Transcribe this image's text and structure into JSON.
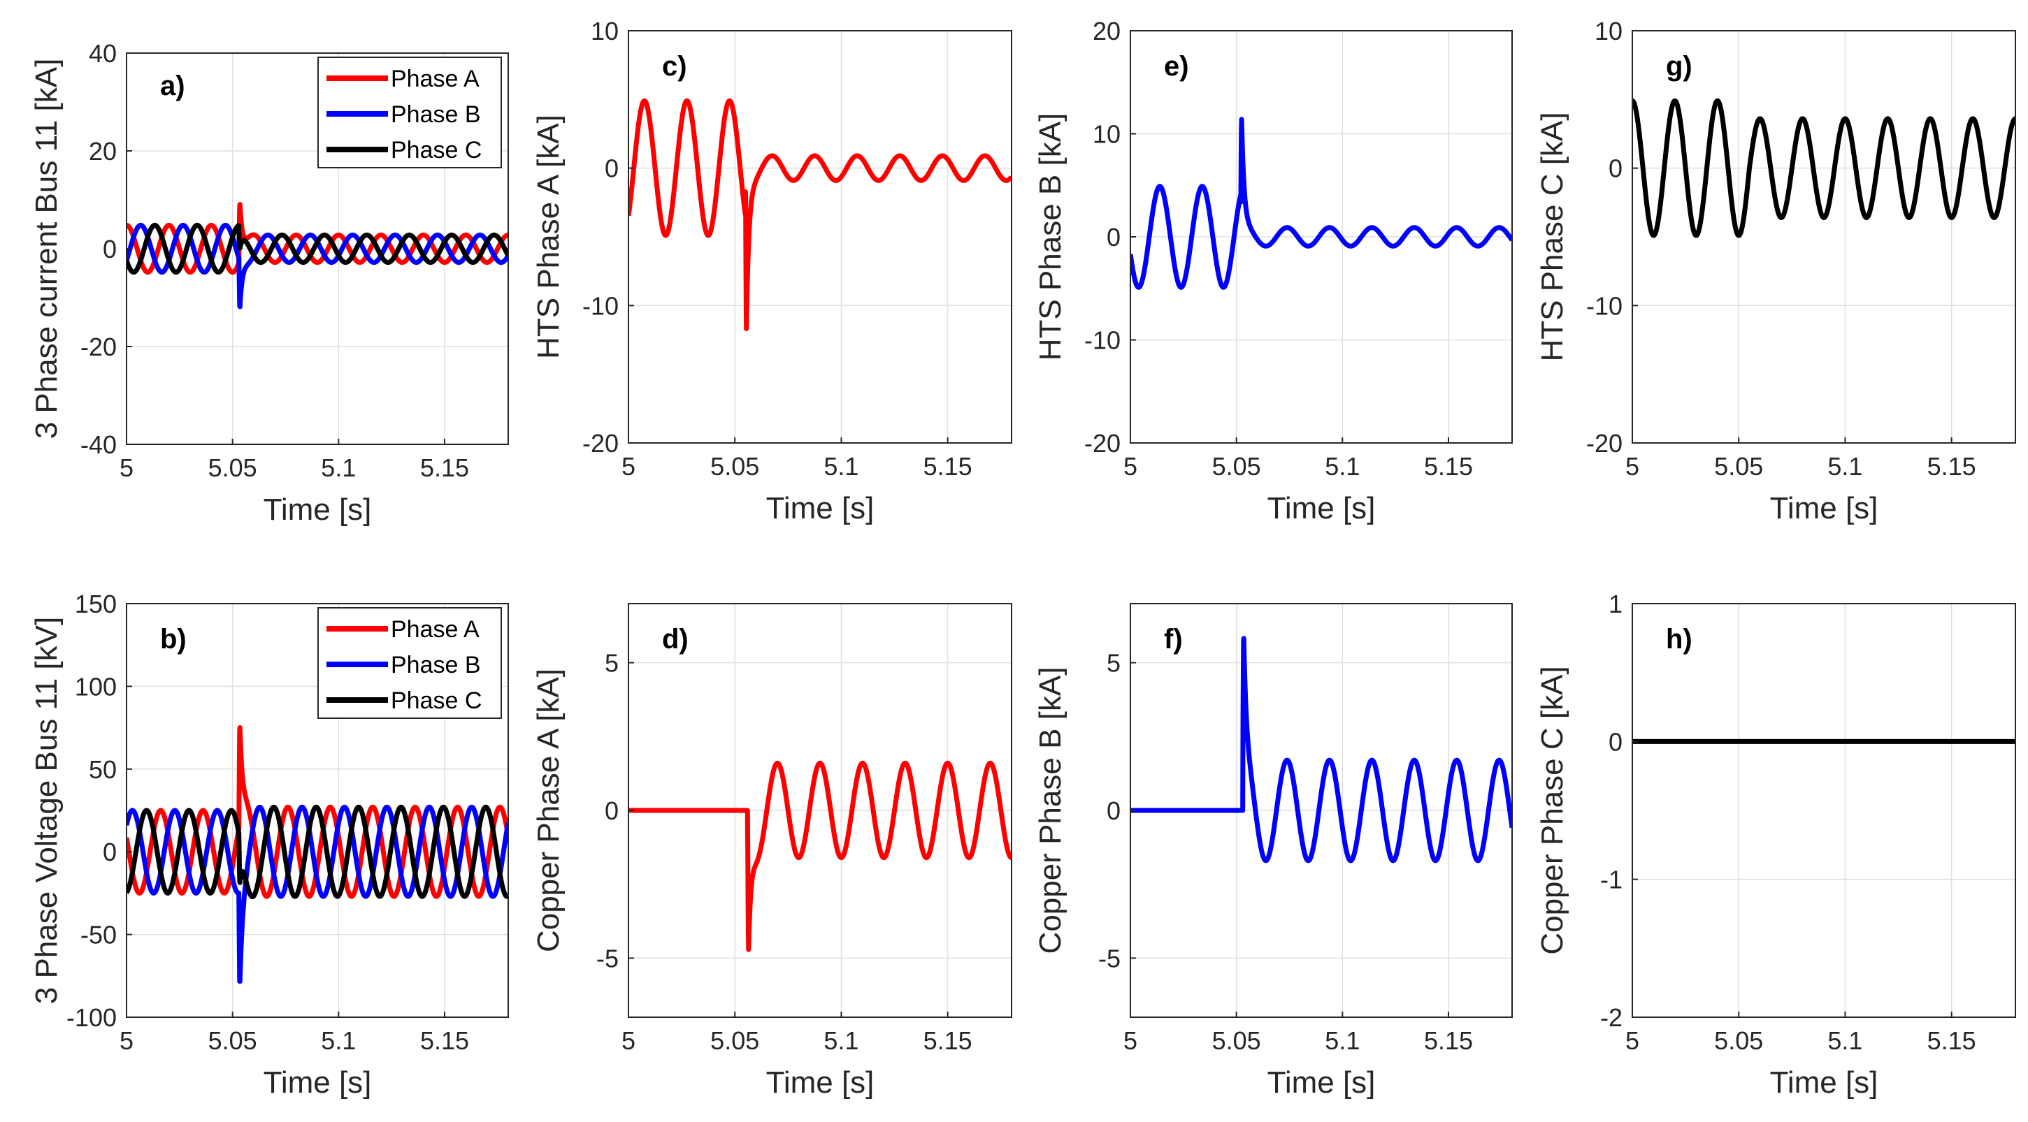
{
  "chart_data": [
    {
      "id": "a",
      "panel_label": "a)",
      "type": "line",
      "xlabel": "Time [s]",
      "ylabel": "3 Phase current Bus 11 [kA]",
      "xlim": [
        5,
        5.18
      ],
      "ylim": [
        -40,
        40
      ],
      "xticks": [
        5,
        5.05,
        5.1,
        5.15
      ],
      "yticks": [
        -40,
        -20,
        0,
        20,
        40
      ],
      "grid": true,
      "legend": "top-right",
      "fault_time": 5.053,
      "series": [
        {
          "name": "Phase A",
          "color": "#ff0000",
          "pre_amplitude": 4.8,
          "post_amplitude": 2.8,
          "phase_deg": 90,
          "spike_peak": 15.5
        },
        {
          "name": "Phase B",
          "color": "#0000ff",
          "pre_amplitude": 4.8,
          "post_amplitude": 2.8,
          "phase_deg": -30,
          "spike_peak": -15.5
        },
        {
          "name": "Phase C",
          "color": "#000000",
          "pre_amplitude": 4.8,
          "post_amplitude": 2.8,
          "phase_deg": 210,
          "spike_peak": -4
        }
      ]
    },
    {
      "id": "b",
      "panel_label": "b)",
      "type": "line",
      "xlabel": "Time [s]",
      "ylabel": "3 Phase Voltage  Bus 11 [kV]",
      "xlim": [
        5,
        5.18
      ],
      "ylim": [
        -100,
        150
      ],
      "xticks": [
        5,
        5.05,
        5.1,
        5.15
      ],
      "yticks": [
        -100,
        -50,
        0,
        50,
        100,
        150
      ],
      "grid": true,
      "legend": "top-right",
      "fault_time": 5.053,
      "series": [
        {
          "name": "Phase A",
          "color": "#ff0000",
          "pre_amplitude": 25,
          "post_amplitude": 27,
          "phase_deg": 160,
          "spike_peak": 85
        },
        {
          "name": "Phase B",
          "color": "#0000ff",
          "pre_amplitude": 25,
          "post_amplitude": 27,
          "phase_deg": 40,
          "spike_peak": -78
        },
        {
          "name": "Phase C",
          "color": "#000000",
          "pre_amplitude": 25,
          "post_amplitude": 27,
          "phase_deg": -80,
          "spike_peak": -40
        }
      ]
    },
    {
      "id": "c",
      "panel_label": "c)",
      "type": "line",
      "xlabel": "Time [s]",
      "ylabel": "HTS Phase A [kA]",
      "xlim": [
        5,
        5.18
      ],
      "ylim": [
        -20,
        10
      ],
      "xticks": [
        5,
        5.05,
        5.1,
        5.15
      ],
      "yticks": [
        -20,
        -10,
        0,
        10
      ],
      "grid": true,
      "fault_time": 5.055,
      "series": [
        {
          "color": "#ff0000",
          "pre_amplitude": 4.9,
          "post_amplitude": 0.9,
          "phase_deg": -45,
          "spike_peak": -15.5
        }
      ]
    },
    {
      "id": "d",
      "panel_label": "d)",
      "type": "line",
      "xlabel": "Time [s]",
      "ylabel": "Copper Phase A [kA]",
      "xlim": [
        5,
        5.18
      ],
      "ylim": [
        -7,
        7
      ],
      "xticks": [
        5,
        5.05,
        5.1,
        5.15
      ],
      "yticks": [
        -5,
        0,
        5
      ],
      "grid": true,
      "fault_time": 5.056,
      "series": [
        {
          "color": "#ff0000",
          "pre_amplitude": 0,
          "post_amplitude": 1.6,
          "phase_deg": -90,
          "spike_peak": -5.8
        }
      ]
    },
    {
      "id": "e",
      "panel_label": "e)",
      "type": "line",
      "xlabel": "Time [s]",
      "ylabel": "HTS Phase B [kA]",
      "xlim": [
        5,
        5.18
      ],
      "ylim": [
        -20,
        20
      ],
      "xticks": [
        5,
        5.05,
        5.1,
        5.15
      ],
      "yticks": [
        -20,
        -10,
        0,
        10,
        20
      ],
      "grid": true,
      "fault_time": 5.052,
      "series": [
        {
          "color": "#0000ff",
          "pre_amplitude": 4.9,
          "post_amplitude": 0.9,
          "phase_deg": -160,
          "spike_peak": 15.5
        }
      ]
    },
    {
      "id": "f",
      "panel_label": "f)",
      "type": "line",
      "xlabel": "Time [s]",
      "ylabel": "Copper Phase B [kA]",
      "xlim": [
        5,
        5.18
      ],
      "ylim": [
        -7,
        7
      ],
      "xticks": [
        5,
        5.05,
        5.1,
        5.15
      ],
      "yticks": [
        -5,
        0,
        5
      ],
      "grid": true,
      "fault_time": 5.053,
      "series": [
        {
          "color": "#0000ff",
          "pre_amplitude": 0,
          "post_amplitude": 1.7,
          "phase_deg": 200,
          "spike_peak": 6.2
        }
      ]
    },
    {
      "id": "g",
      "panel_label": "g)",
      "type": "line",
      "xlabel": "Time [s]",
      "ylabel": "HTS Phase C [kA]",
      "xlim": [
        5,
        5.18
      ],
      "ylim": [
        -20,
        10
      ],
      "xticks": [
        5,
        5.05,
        5.1,
        5.15
      ],
      "yticks": [
        -20,
        -10,
        0,
        10
      ],
      "grid": true,
      "fault_time": 5.055,
      "series": [
        {
          "color": "#000000",
          "pre_amplitude": 4.9,
          "post_amplitude": 3.6,
          "phase_deg": 90,
          "spike_peak": 0
        }
      ]
    },
    {
      "id": "h",
      "panel_label": "h)",
      "type": "line",
      "xlabel": "Time [s]",
      "ylabel": "Copper Phase C [kA]",
      "xlim": [
        5,
        5.18
      ],
      "ylim": [
        -2,
        1
      ],
      "xticks": [
        5,
        5.05,
        5.1,
        5.15
      ],
      "yticks": [
        -2,
        -1,
        0,
        1
      ],
      "grid": true,
      "fault_time": 5.055,
      "series": [
        {
          "color": "#000000",
          "pre_amplitude": 0,
          "post_amplitude": 0,
          "phase_deg": 0,
          "spike_peak": 0
        }
      ]
    }
  ]
}
